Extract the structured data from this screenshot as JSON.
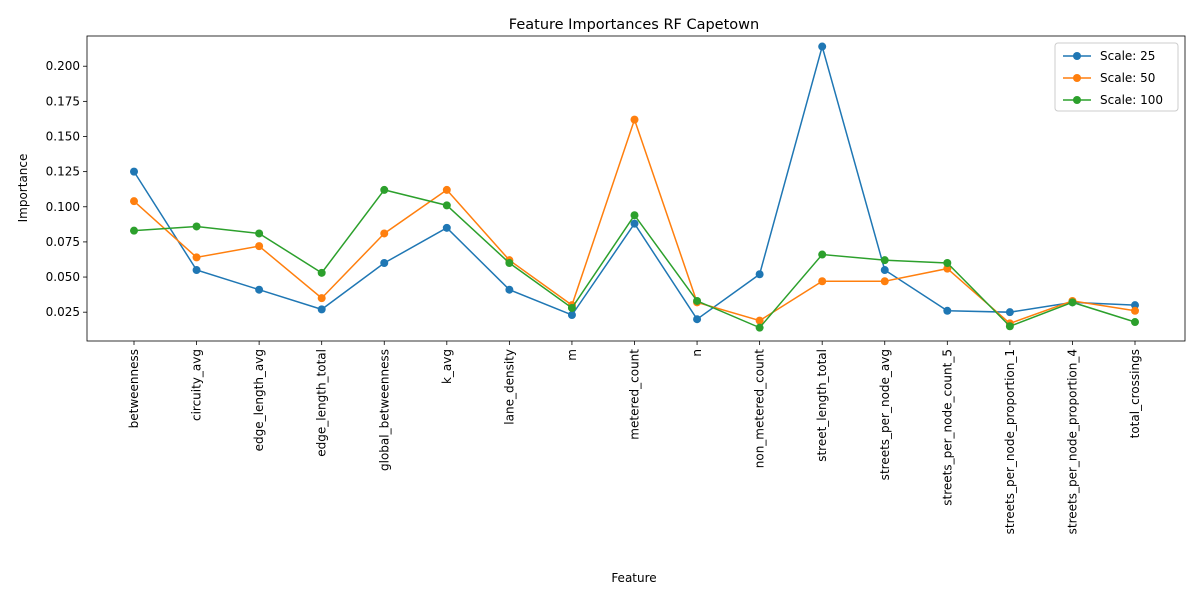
{
  "chart_data": {
    "type": "line",
    "title": "Feature Importances RF Capetown",
    "xlabel": "Feature",
    "ylabel": "Importance",
    "categories": [
      "betweenness",
      "circuity_avg",
      "edge_length_avg",
      "edge_length_total",
      "global_betweenness",
      "k_avg",
      "lane_density",
      "m",
      "metered_count",
      "n",
      "non_metered_count",
      "street_length_total",
      "streets_per_node_avg",
      "streets_per_node_count_5",
      "streets_per_node_proportion_1",
      "streets_per_node_proportion_4",
      "total_crossings"
    ],
    "ylim": [
      0.0045,
      0.2215
    ],
    "yticks": [
      0.025,
      0.05,
      0.075,
      0.1,
      0.125,
      0.15,
      0.175,
      0.2
    ],
    "ytick_labels": [
      "0.025",
      "0.050",
      "0.075",
      "0.100",
      "0.125",
      "0.150",
      "0.175",
      "0.200"
    ],
    "grid": false,
    "legend_position": "top-right",
    "series": [
      {
        "name": "Scale: 25",
        "color": "#1f77b4",
        "values": [
          0.125,
          0.055,
          0.041,
          0.027,
          0.06,
          0.085,
          0.041,
          0.023,
          0.088,
          0.02,
          0.052,
          0.214,
          0.055,
          0.026,
          0.025,
          0.032,
          0.03
        ]
      },
      {
        "name": "Scale: 50",
        "color": "#ff7f0e",
        "values": [
          0.104,
          0.064,
          0.072,
          0.035,
          0.081,
          0.112,
          0.062,
          0.03,
          0.162,
          0.032,
          0.019,
          0.047,
          0.047,
          0.056,
          0.017,
          0.033,
          0.026
        ]
      },
      {
        "name": "Scale: 100",
        "color": "#2ca02c",
        "values": [
          0.083,
          0.086,
          0.081,
          0.053,
          0.112,
          0.101,
          0.06,
          0.028,
          0.094,
          0.033,
          0.014,
          0.066,
          0.062,
          0.06,
          0.015,
          0.032,
          0.018
        ]
      }
    ]
  }
}
